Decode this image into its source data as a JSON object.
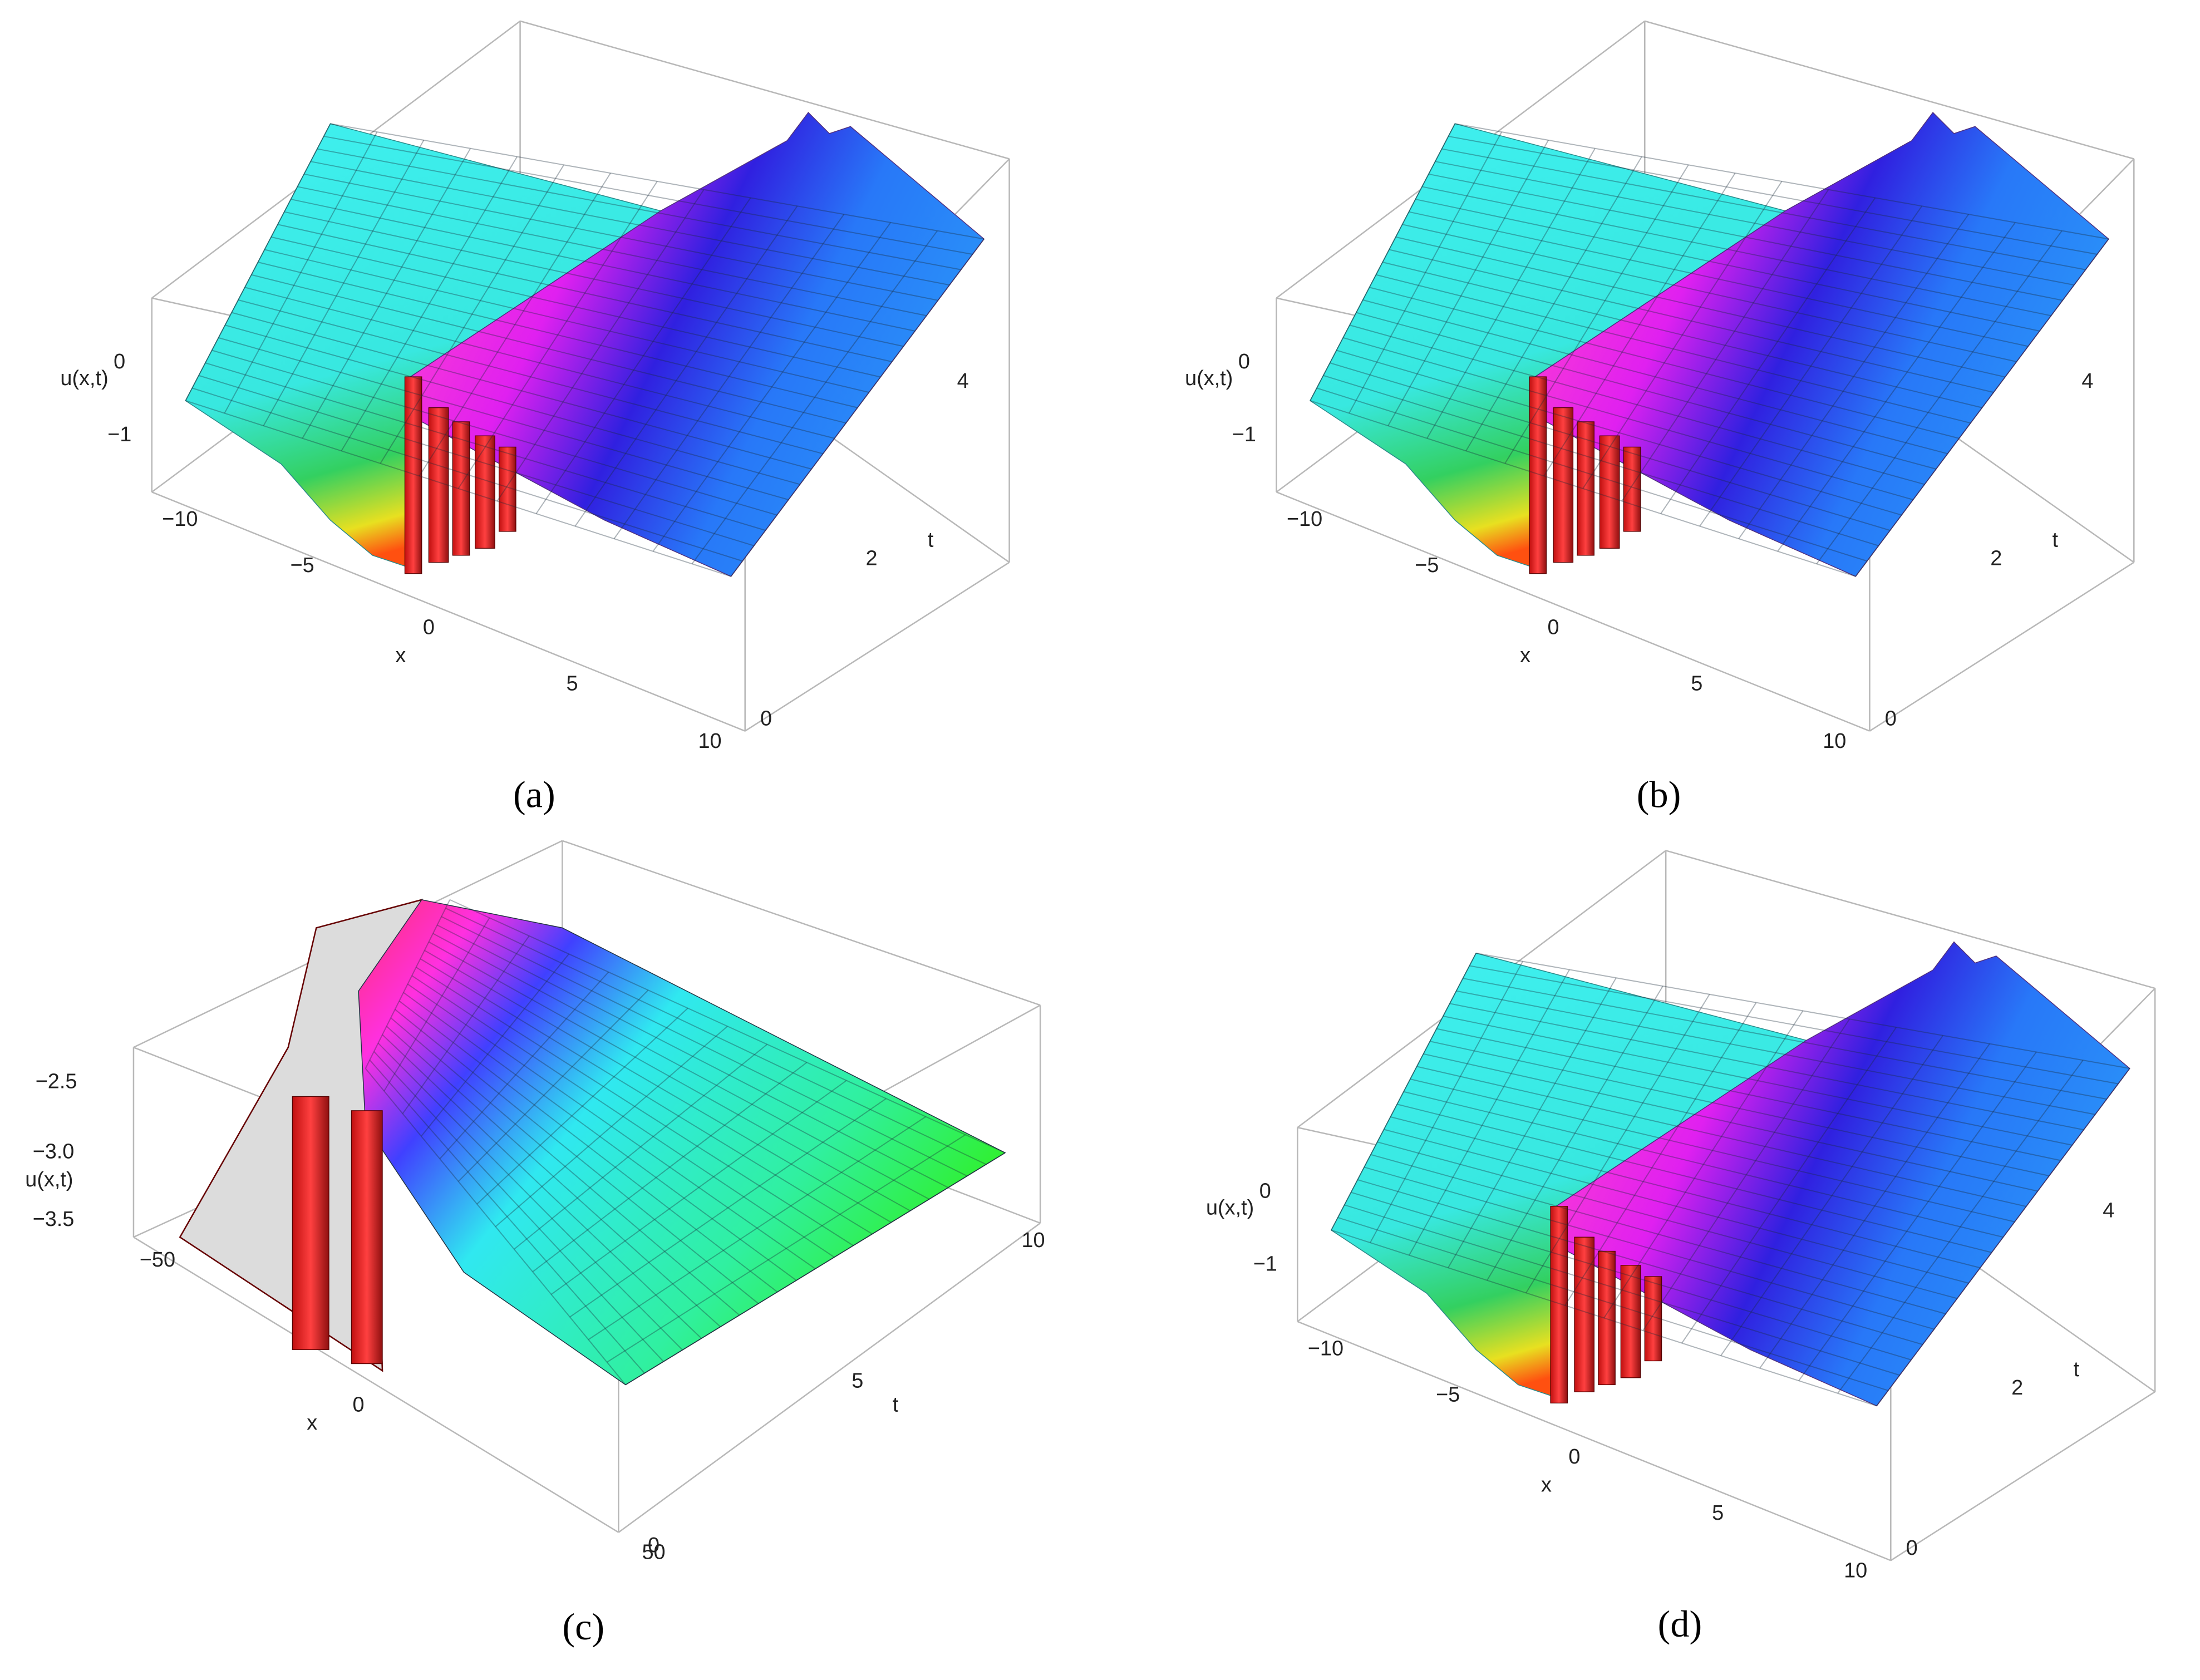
{
  "panels": [
    {
      "label": "(a)",
      "z_axis_label": "u(x,t)",
      "x_axis_label": "x",
      "t_axis_label": "t",
      "z_ticks": [
        "0",
        "−1"
      ],
      "x_ticks": [
        "−10",
        "−5",
        "0",
        "5",
        "10"
      ],
      "t_ticks": [
        "0",
        "2",
        "4"
      ]
    },
    {
      "label": "(b)",
      "z_axis_label": "u(x,t)",
      "x_axis_label": "x",
      "t_axis_label": "t",
      "z_ticks": [
        "0",
        "−1"
      ],
      "x_ticks": [
        "−10",
        "−5",
        "0",
        "5",
        "10"
      ],
      "t_ticks": [
        "0",
        "2",
        "4"
      ]
    },
    {
      "label": "(c)",
      "z_axis_label": "u(x,t)",
      "x_axis_label": "x",
      "t_axis_label": "t",
      "z_ticks": [
        "−2.5",
        "−3.0",
        "−3.5"
      ],
      "x_ticks": [
        "−50",
        "0",
        "50"
      ],
      "t_ticks": [
        "0",
        "5",
        "10"
      ]
    },
    {
      "label": "(d)",
      "z_axis_label": "u(x,t)",
      "x_axis_label": "x",
      "t_axis_label": "t",
      "z_ticks": [
        "0",
        "−1"
      ],
      "x_ticks": [
        "−10",
        "−5",
        "0",
        "5",
        "10"
      ],
      "t_ticks": [
        "0",
        "2",
        "4"
      ]
    }
  ]
}
